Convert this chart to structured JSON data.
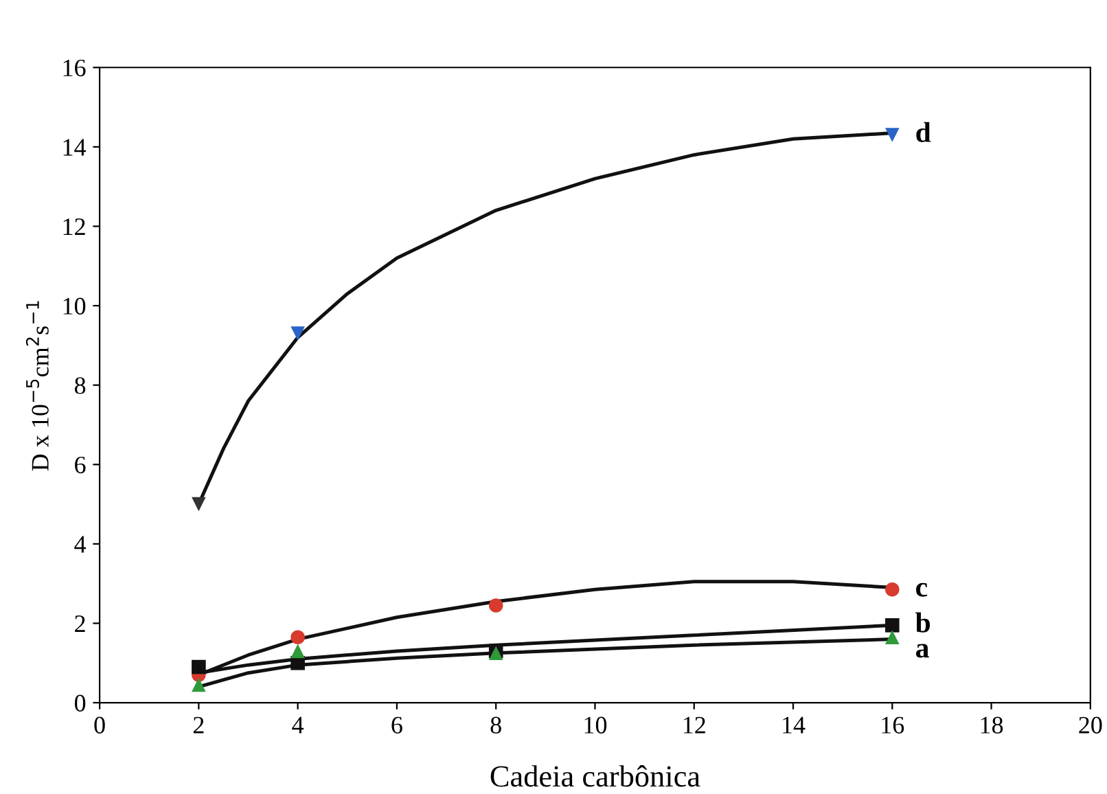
{
  "chart_data": {
    "type": "scatter",
    "xlabel": "Cadeia carbônica",
    "ylabel": "D x 10$^{−5}$cm$^{2}$s$^{−1}$",
    "xlim": [
      0,
      20
    ],
    "xticks": [
      0,
      2,
      4,
      6,
      8,
      10,
      12,
      14,
      16,
      18,
      20
    ],
    "ylim": [
      0,
      16
    ],
    "yticks": [
      0,
      2,
      4,
      6,
      8,
      10,
      12,
      14,
      16
    ],
    "grid": false,
    "legend": false,
    "series": [
      {
        "type": "line",
        "color": "#111111",
        "marker": "none",
        "x": [
          2,
          2.5,
          3,
          4,
          5,
          6,
          8,
          10,
          12,
          14,
          16
        ],
        "values": [
          5.0,
          6.4,
          7.6,
          9.2,
          10.3,
          11.2,
          12.4,
          13.2,
          13.8,
          14.2,
          14.35
        ]
      },
      {
        "type": "line",
        "color": "#111111",
        "marker": "none",
        "x": [
          2,
          3,
          4,
          6,
          8,
          10,
          12,
          14,
          16
        ],
        "values": [
          0.7,
          1.2,
          1.6,
          2.15,
          2.55,
          2.85,
          3.05,
          3.05,
          2.9
        ]
      },
      {
        "type": "line",
        "color": "#111111",
        "marker": "none",
        "x": [
          2,
          3,
          4,
          6,
          8,
          12,
          16
        ],
        "values": [
          0.75,
          0.95,
          1.1,
          1.3,
          1.45,
          1.7,
          1.95
        ]
      },
      {
        "type": "line",
        "color": "#111111",
        "marker": "none",
        "x": [
          2,
          3,
          4,
          6,
          8,
          12,
          16
        ],
        "values": [
          0.4,
          0.75,
          0.95,
          1.12,
          1.25,
          1.45,
          1.6
        ]
      },
      {
        "name": "d",
        "colors": [
          "#333333",
          "#2a64c8",
          "#2a64c8"
        ],
        "marker": "triangle_down",
        "x": [
          2,
          4,
          16
        ],
        "values": [
          5.0,
          9.3,
          14.3
        ]
      },
      {
        "name": "c",
        "color": "#d83a2e",
        "marker": "circle",
        "x": [
          2,
          4,
          8,
          16
        ],
        "values": [
          0.7,
          1.65,
          2.45,
          2.85
        ]
      },
      {
        "name": "b",
        "color": "#111111",
        "marker": "square",
        "x": [
          2,
          4,
          8,
          16
        ],
        "values": [
          0.9,
          1.0,
          1.3,
          1.95
        ]
      },
      {
        "name": "a",
        "color": "#2e9a3a",
        "marker": "triangle",
        "x": [
          2,
          4,
          8,
          16
        ],
        "values": [
          0.45,
          1.3,
          1.25,
          1.65
        ]
      }
    ]
  }
}
